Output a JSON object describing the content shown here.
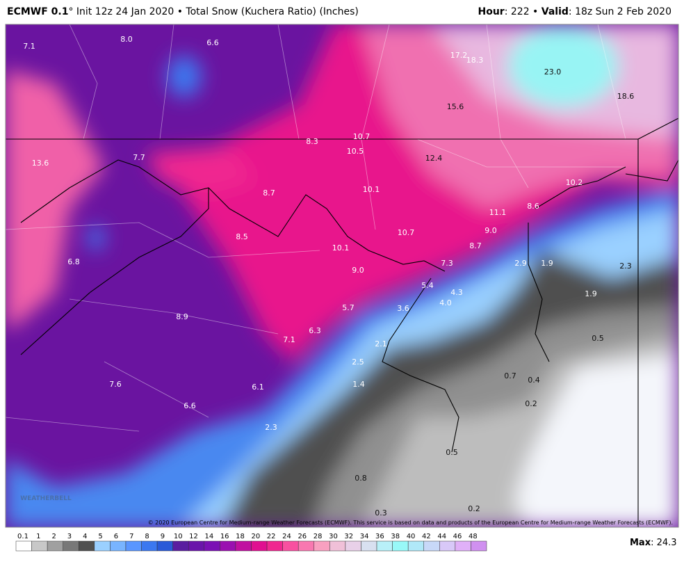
{
  "header": {
    "left_bold": "ECMWF 0.1",
    "left_rest": "° Init 12z 24 Jan 2020 • Total Snow (Kuchera Ratio) (Inches)",
    "right_hour_label": "Hour",
    "right_hour": ": 222 • ",
    "right_valid_label": "Valid",
    "right_valid": ": 18z Sun 2 Feb 2020"
  },
  "map": {
    "labels": [
      "7.1",
      "8.0",
      "6.6",
      "17.2",
      "18.3",
      "23.0",
      "15.6",
      "18.6",
      "10.7",
      "8.3",
      "10.5",
      "12.4",
      "13.6",
      "7.7",
      "10.1",
      "8.7",
      "10.2",
      "8.6",
      "11.1",
      "9.0",
      "10.7",
      "8.5",
      "8.7",
      "10.1",
      "6.8",
      "7.3",
      "2.9",
      "1.9",
      "2.3",
      "9.0",
      "5.4",
      "4.3",
      "1.9",
      "4.0",
      "5.7",
      "3.6",
      "8.9",
      "6.3",
      "7.1",
      "0.5",
      "2.1",
      "2.5",
      "0.7",
      "0.4",
      "1.4",
      "6.1",
      "7.6",
      "0.2",
      "6.6",
      "2.3",
      "0.5",
      "0.8",
      "0.3",
      "0.2"
    ],
    "copyright": "© 2020 European Centre for Medium-range Weather Forecasts (ECMWF). This service is based on data and products of the European Centre for Medium-range Weather Forecasts (ECMWF).",
    "logo": "WEATHERBELL"
  },
  "colorbar": {
    "labels": [
      "0.1",
      "1",
      "2",
      "3",
      "4",
      "5",
      "6",
      "7",
      "8",
      "9",
      "10",
      "12",
      "14",
      "16",
      "18",
      "20",
      "22",
      "24",
      "26",
      "28",
      "30",
      "32",
      "34",
      "36",
      "38",
      "40",
      "42",
      "44",
      "46",
      "48"
    ],
    "colors": [
      "#ffffff",
      "#c8c8c8",
      "#a0a0a0",
      "#787878",
      "#505050",
      "#9ad0ff",
      "#78b4ff",
      "#5a96ff",
      "#3c78f0",
      "#2a5ad8",
      "#5a1ea0",
      "#6a14aa",
      "#7a10b4",
      "#9a10b0",
      "#c010a0",
      "#e01090",
      "#f02890",
      "#f850a0",
      "#f878b0",
      "#f8a0c0",
      "#f0c0d8",
      "#e8d0e8",
      "#d8e0f0",
      "#b8f0f8",
      "#98f8f8",
      "#b0e8f8",
      "#c8d8f8",
      "#d8c8f8",
      "#e0b0f8",
      "#d090f0"
    ],
    "max_label": "Max",
    "max_value": ": 24.3"
  }
}
